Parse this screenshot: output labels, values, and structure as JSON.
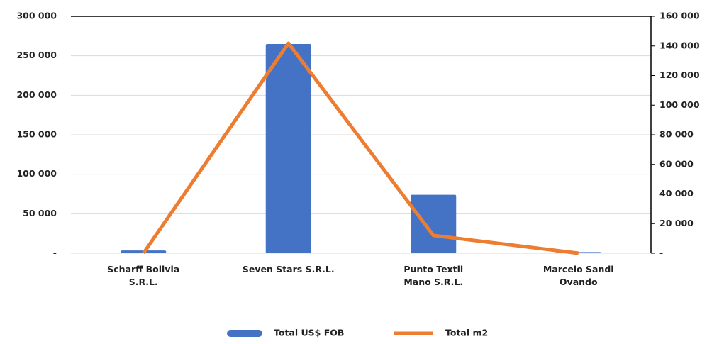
{
  "chart_data": {
    "type": "bar_line",
    "categories": [
      "Scharff Bolivia\nS.R.L.",
      "Seven Stars S.R.L.",
      "Punto Textil\nMano S.R.L.",
      "Marcelo Sandi\nOvando"
    ],
    "series": [
      {
        "name": "Total US$ FOB",
        "type": "bar",
        "color": "#4472c4",
        "values": [
          3500,
          265000,
          74000,
          1500
        ]
      },
      {
        "name": "Total m2",
        "type": "line",
        "color": "#ed7d31",
        "axis": "y2",
        "values": [
          0,
          141800,
          12000,
          0
        ]
      }
    ],
    "ylim": [
      0,
      300000
    ],
    "yticks": [
      {
        "value": 0,
        "label": "-"
      },
      {
        "value": 50000,
        "label": "50 000"
      },
      {
        "value": 100000,
        "label": "100 000"
      },
      {
        "value": 150000,
        "label": "150 000"
      },
      {
        "value": 200000,
        "label": "200 000"
      },
      {
        "value": 250000,
        "label": "250 000"
      },
      {
        "value": 300000,
        "label": "300 000"
      }
    ],
    "y2lim": [
      0,
      160000
    ],
    "y2ticks": [
      {
        "value": 0,
        "label": "-"
      },
      {
        "value": 20000,
        "label": "20 000"
      },
      {
        "value": 40000,
        "label": "40 000"
      },
      {
        "value": 60000,
        "label": "60 000"
      },
      {
        "value": 80000,
        "label": "80 000"
      },
      {
        "value": 100000,
        "label": "100 000"
      },
      {
        "value": 120000,
        "label": "120 000"
      },
      {
        "value": 140000,
        "label": "140 000"
      },
      {
        "value": 160000,
        "label": "160 000"
      }
    ],
    "grid": true,
    "legend": "bottom"
  }
}
